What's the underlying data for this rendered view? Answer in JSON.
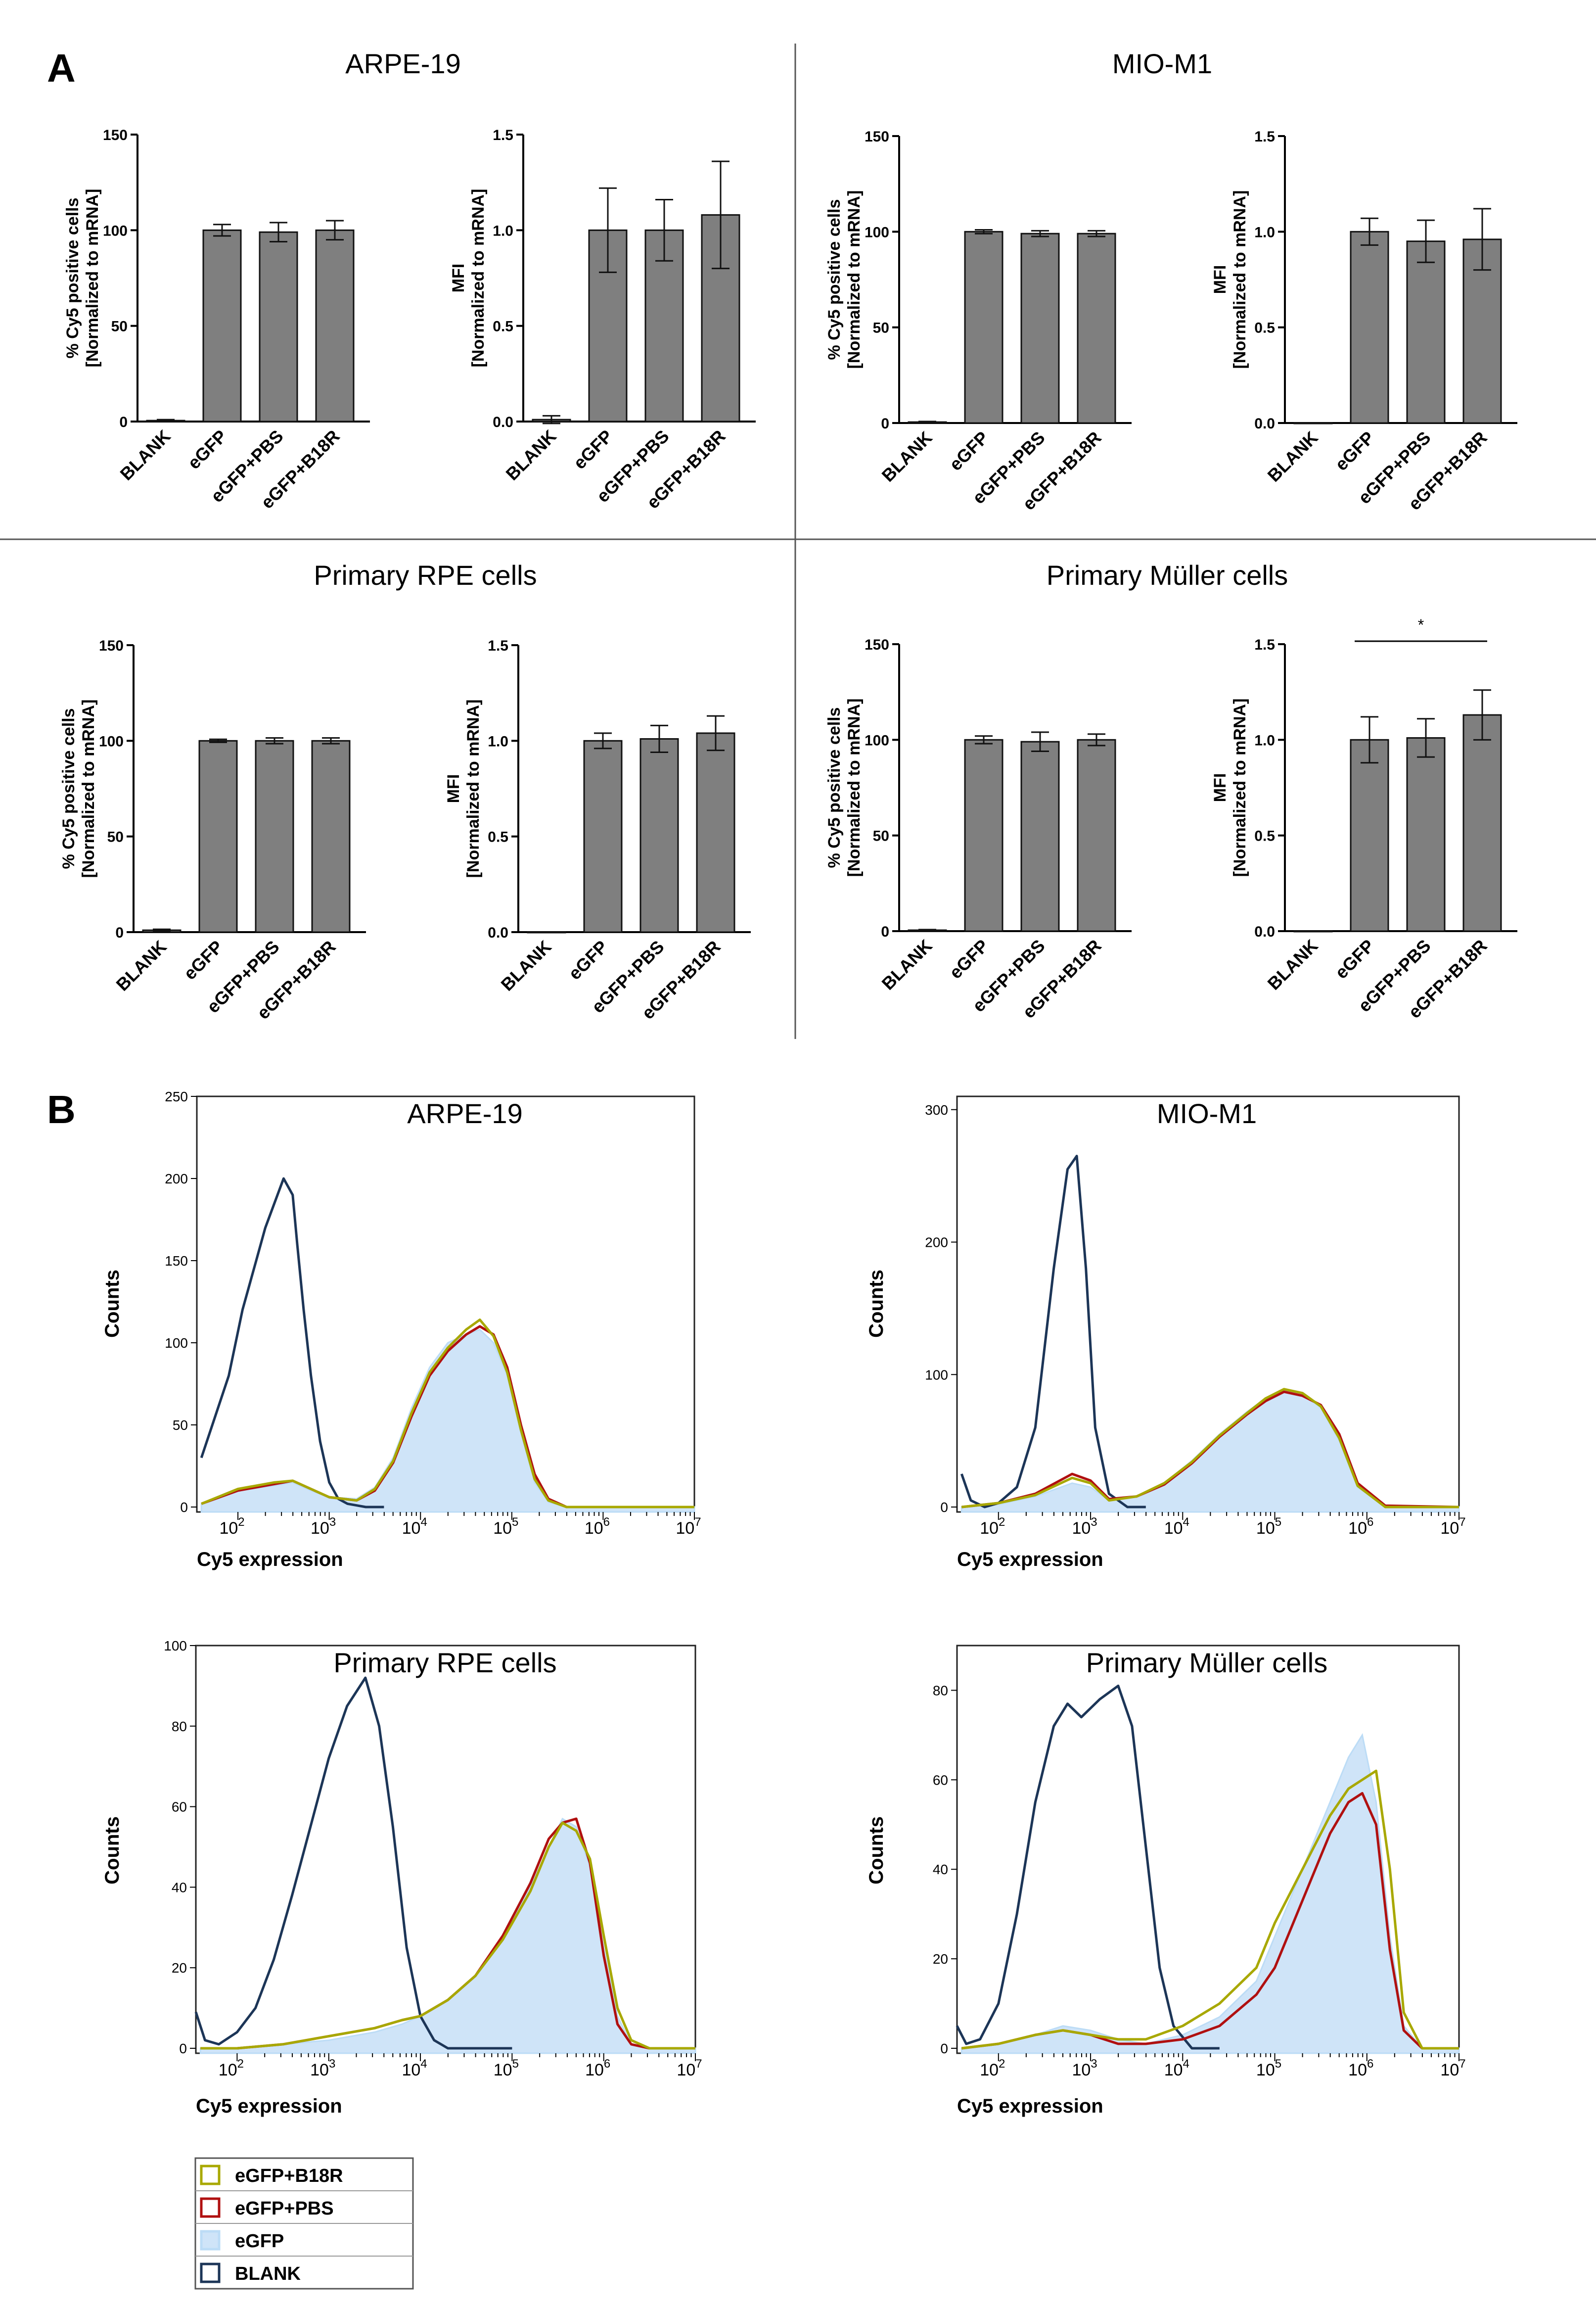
{
  "panel_labels": {
    "a": "A",
    "b": "B"
  },
  "bar_section": {
    "categories": [
      "BLANK",
      "eGFP",
      "eGFP+PBS",
      "eGFP+B18R"
    ],
    "ylabel_pct": [
      "% Cy5 positive cells",
      "[Normalized to mRNA]"
    ],
    "ylabel_mfi": [
      "MFI",
      "[Normalized to mRNA]"
    ],
    "pct_ticks": [
      "0",
      "50",
      "100",
      "150"
    ],
    "mfi_ticks": [
      "0.0",
      "0.5",
      "1.0",
      "1.5"
    ],
    "significance_label": "*"
  },
  "histogram_section": {
    "xlabel": "Cy5 expression",
    "ylabel": "Counts",
    "x_ticks": [
      "2",
      "3",
      "4",
      "5",
      "6",
      "7"
    ],
    "x_base": "10"
  },
  "legend": {
    "items": [
      {
        "label": "eGFP+B18R",
        "color": "#a8a800",
        "fill": "none"
      },
      {
        "label": "eGFP+PBS",
        "color": "#b01010",
        "fill": "none"
      },
      {
        "label": "eGFP",
        "color": "#bcdcf6",
        "fill": "#cfe4f8"
      },
      {
        "label": "BLANK",
        "color": "#1c3557",
        "fill": "none"
      }
    ]
  },
  "chart_data": [
    {
      "type": "bar",
      "title": "ARPE-19",
      "metric": "pct",
      "categories": [
        "BLANK",
        "eGFP",
        "eGFP+PBS",
        "eGFP+B18R"
      ],
      "values": [
        0.5,
        100,
        99,
        100
      ],
      "errors": [
        0.5,
        3,
        5,
        5
      ],
      "ylim": [
        0,
        150
      ],
      "ylabel": "% Cy5 positive cells [Normalized to mRNA]"
    },
    {
      "type": "bar",
      "title": "ARPE-19",
      "metric": "mfi",
      "categories": [
        "BLANK",
        "eGFP",
        "eGFP+PBS",
        "eGFP+B18R"
      ],
      "values": [
        0.01,
        1.0,
        1.0,
        1.08
      ],
      "errors": [
        0.02,
        0.22,
        0.16,
        0.28
      ],
      "ylim": [
        0,
        1.5
      ],
      "ylabel": "MFI [Normalized to mRNA]"
    },
    {
      "type": "bar",
      "title": "MIO-M1",
      "metric": "pct",
      "categories": [
        "BLANK",
        "eGFP",
        "eGFP+PBS",
        "eGFP+B18R"
      ],
      "values": [
        0.5,
        100,
        99,
        99
      ],
      "errors": [
        0.3,
        1,
        1.5,
        1.5
      ],
      "ylim": [
        0,
        150
      ],
      "ylabel": "% Cy5 positive cells [Normalized to mRNA]"
    },
    {
      "type": "bar",
      "title": "MIO-M1",
      "metric": "mfi",
      "categories": [
        "BLANK",
        "eGFP",
        "eGFP+PBS",
        "eGFP+B18R"
      ],
      "values": [
        0.0,
        1.0,
        0.95,
        0.96
      ],
      "errors": [
        0,
        0.07,
        0.11,
        0.16
      ],
      "ylim": [
        0,
        1.5
      ],
      "ylabel": "MFI [Normalized to mRNA]"
    },
    {
      "type": "bar",
      "title": "Primary RPE cells",
      "metric": "pct",
      "categories": [
        "BLANK",
        "eGFP",
        "eGFP+PBS",
        "eGFP+B18R"
      ],
      "values": [
        1,
        100,
        100,
        100
      ],
      "errors": [
        0.5,
        0.8,
        1.5,
        1.5
      ],
      "ylim": [
        0,
        150
      ],
      "ylabel": "% Cy5 positive cells [Normalized to mRNA]"
    },
    {
      "type": "bar",
      "title": "Primary RPE cells",
      "metric": "mfi",
      "categories": [
        "BLANK",
        "eGFP",
        "eGFP+PBS",
        "eGFP+B18R"
      ],
      "values": [
        0.0,
        1.0,
        1.01,
        1.04
      ],
      "errors": [
        0,
        0.04,
        0.07,
        0.09
      ],
      "ylim": [
        0,
        1.5
      ],
      "ylabel": "MFI [Normalized to mRNA]"
    },
    {
      "type": "bar",
      "title": "Primary Müller cells",
      "metric": "pct",
      "categories": [
        "BLANK",
        "eGFP",
        "eGFP+PBS",
        "eGFP+B18R"
      ],
      "values": [
        0.5,
        100,
        99,
        100
      ],
      "errors": [
        0.3,
        2,
        5,
        3
      ],
      "ylim": [
        0,
        150
      ],
      "ylabel": "% Cy5 positive cells [Normalized to mRNA]"
    },
    {
      "type": "bar",
      "title": "Primary Müller cells",
      "metric": "mfi",
      "categories": [
        "BLANK",
        "eGFP",
        "eGFP+PBS",
        "eGFP+B18R"
      ],
      "values": [
        0.0,
        1.0,
        1.01,
        1.13
      ],
      "errors": [
        0,
        0.12,
        0.1,
        0.13
      ],
      "ylim": [
        0,
        1.5
      ],
      "ylabel": "MFI [Normalized to mRNA]",
      "significance": {
        "from": "eGFP",
        "to": "eGFP+B18R",
        "label": "*"
      }
    },
    {
      "type": "line",
      "title": "ARPE-19",
      "xlabel": "Cy5 expression",
      "ylabel": "Counts",
      "x_scale": "log10",
      "xlim": [
        1.55,
        7
      ],
      "ylim": [
        0,
        250
      ],
      "y_ticks": [
        0,
        50,
        100,
        150,
        200,
        250
      ],
      "series": [
        {
          "name": "BLANK",
          "x": [
            1.6,
            1.75,
            1.9,
            2.05,
            2.2,
            2.3,
            2.4,
            2.5,
            2.55,
            2.6,
            2.65,
            2.72,
            2.8,
            2.9,
            3.0,
            3.1,
            3.2,
            3.3,
            3.4,
            3.5,
            3.6
          ],
          "y": [
            30,
            55,
            80,
            120,
            150,
            170,
            185,
            200,
            195,
            190,
            160,
            120,
            80,
            40,
            15,
            5,
            2,
            1,
            0,
            0,
            0
          ]
        },
        {
          "name": "eGFP",
          "x": [
            1.6,
            2.0,
            2.4,
            2.6,
            2.8,
            3.0,
            3.3,
            3.5,
            3.7,
            3.9,
            4.1,
            4.3,
            4.5,
            4.65,
            4.8,
            4.95,
            5.1,
            5.25,
            5.4,
            5.6,
            5.9,
            7.0
          ],
          "y": [
            2,
            10,
            13,
            15,
            10,
            6,
            5,
            12,
            30,
            60,
            85,
            100,
            105,
            108,
            100,
            80,
            45,
            15,
            3,
            0,
            0,
            0
          ]
        },
        {
          "name": "eGFP+PBS",
          "x": [
            1.6,
            2.0,
            2.4,
            2.6,
            2.8,
            3.0,
            3.3,
            3.5,
            3.7,
            3.9,
            4.1,
            4.3,
            4.5,
            4.65,
            4.8,
            4.95,
            5.1,
            5.25,
            5.4,
            5.6,
            5.9,
            7.0
          ],
          "y": [
            2,
            10,
            14,
            16,
            11,
            6,
            4,
            10,
            27,
            55,
            80,
            95,
            105,
            110,
            105,
            85,
            50,
            20,
            5,
            0,
            0,
            0
          ]
        },
        {
          "name": "eGFP+B18R",
          "x": [
            1.6,
            2.0,
            2.4,
            2.6,
            2.8,
            3.0,
            3.3,
            3.5,
            3.7,
            3.9,
            4.1,
            4.3,
            4.5,
            4.65,
            4.8,
            4.95,
            5.1,
            5.25,
            5.4,
            5.6,
            5.9,
            7.0
          ],
          "y": [
            2,
            11,
            15,
            16,
            11,
            6,
            4,
            11,
            28,
            57,
            82,
            97,
            108,
            114,
            104,
            82,
            47,
            17,
            4,
            0,
            0,
            0
          ]
        }
      ]
    },
    {
      "type": "line",
      "title": "MIO-M1",
      "xlabel": "Cy5 expression",
      "ylabel": "Counts",
      "x_scale": "log10",
      "xlim": [
        1.55,
        7
      ],
      "ylim": [
        0,
        310
      ],
      "y_ticks": [
        0,
        100,
        200,
        300
      ],
      "series": [
        {
          "name": "BLANK",
          "x": [
            1.6,
            1.7,
            1.85,
            2.0,
            2.2,
            2.4,
            2.6,
            2.75,
            2.85,
            2.95,
            3.05,
            3.2,
            3.4,
            3.6
          ],
          "y": [
            25,
            5,
            0,
            3,
            15,
            60,
            180,
            255,
            265,
            180,
            60,
            10,
            0,
            0
          ]
        },
        {
          "name": "eGFP",
          "x": [
            1.6,
            2.0,
            2.4,
            2.8,
            3.0,
            3.2,
            3.5,
            3.8,
            4.1,
            4.4,
            4.7,
            4.9,
            5.1,
            5.3,
            5.5,
            5.7,
            5.9,
            6.2,
            7.0
          ],
          "y": [
            0,
            2,
            8,
            18,
            15,
            5,
            8,
            18,
            35,
            55,
            72,
            82,
            88,
            85,
            75,
            50,
            15,
            0,
            0
          ]
        },
        {
          "name": "eGFP+PBS",
          "x": [
            1.6,
            2.0,
            2.4,
            2.8,
            3.0,
            3.2,
            3.5,
            3.8,
            4.1,
            4.4,
            4.7,
            4.9,
            5.1,
            5.3,
            5.5,
            5.7,
            5.9,
            6.2,
            7.0
          ],
          "y": [
            0,
            3,
            10,
            25,
            20,
            6,
            8,
            17,
            33,
            53,
            70,
            80,
            87,
            84,
            77,
            55,
            18,
            1,
            0
          ]
        },
        {
          "name": "eGFP+B18R",
          "x": [
            1.6,
            2.0,
            2.4,
            2.8,
            3.0,
            3.2,
            3.5,
            3.8,
            4.1,
            4.4,
            4.7,
            4.9,
            5.1,
            5.3,
            5.5,
            5.7,
            5.9,
            6.2,
            7.0
          ],
          "y": [
            0,
            3,
            9,
            22,
            18,
            5,
            8,
            18,
            34,
            54,
            71,
            82,
            89,
            86,
            76,
            52,
            16,
            0,
            0
          ]
        }
      ]
    },
    {
      "type": "line",
      "title": "Primary RPE cells",
      "xlabel": "Cy5 expression",
      "ylabel": "Counts",
      "x_scale": "log10",
      "xlim": [
        1.55,
        7
      ],
      "ylim": [
        0,
        100
      ],
      "y_ticks": [
        0,
        20,
        40,
        60,
        80,
        100
      ],
      "series": [
        {
          "name": "BLANK",
          "x": [
            1.55,
            1.65,
            1.8,
            2.0,
            2.2,
            2.4,
            2.6,
            2.8,
            3.0,
            3.2,
            3.4,
            3.55,
            3.7,
            3.85,
            4.0,
            4.15,
            4.3,
            4.6,
            5.0
          ],
          "y": [
            9,
            2,
            1,
            4,
            10,
            22,
            38,
            55,
            72,
            85,
            92,
            80,
            55,
            25,
            8,
            2,
            0,
            0,
            0
          ]
        },
        {
          "name": "eGFP",
          "x": [
            1.6,
            2.0,
            2.5,
            3.0,
            3.5,
            3.8,
            4.0,
            4.3,
            4.6,
            4.9,
            5.2,
            5.4,
            5.55,
            5.7,
            5.85,
            6.0,
            6.15,
            6.3,
            6.5,
            7.0
          ],
          "y": [
            0,
            0,
            1,
            2,
            4,
            6,
            8,
            12,
            18,
            28,
            40,
            50,
            57,
            55,
            45,
            25,
            8,
            1,
            0,
            0
          ]
        },
        {
          "name": "eGFP+PBS",
          "x": [
            1.6,
            2.0,
            2.5,
            3.0,
            3.5,
            3.8,
            4.0,
            4.3,
            4.6,
            4.9,
            5.2,
            5.4,
            5.55,
            5.7,
            5.85,
            6.0,
            6.15,
            6.3,
            6.5,
            7.0
          ],
          "y": [
            0,
            0,
            1,
            3,
            5,
            7,
            8,
            12,
            18,
            28,
            41,
            52,
            56,
            57,
            46,
            23,
            6,
            1,
            0,
            0
          ]
        },
        {
          "name": "eGFP+B18R",
          "x": [
            1.6,
            2.0,
            2.5,
            3.0,
            3.5,
            3.8,
            4.0,
            4.3,
            4.6,
            4.9,
            5.2,
            5.4,
            5.55,
            5.7,
            5.85,
            6.0,
            6.15,
            6.3,
            6.5,
            7.0
          ],
          "y": [
            0,
            0,
            1,
            3,
            5,
            7,
            8,
            12,
            18,
            27,
            39,
            50,
            56,
            54,
            47,
            28,
            10,
            2,
            0,
            0
          ]
        }
      ]
    },
    {
      "type": "line",
      "title": "Primary Müller cells",
      "xlabel": "Cy5 expression",
      "ylabel": "Counts",
      "x_scale": "log10",
      "xlim": [
        1.55,
        7
      ],
      "ylim": [
        0,
        90
      ],
      "y_ticks": [
        0,
        20,
        40,
        60,
        80
      ],
      "series": [
        {
          "name": "BLANK",
          "x": [
            1.55,
            1.65,
            1.8,
            2.0,
            2.2,
            2.4,
            2.6,
            2.75,
            2.9,
            3.1,
            3.3,
            3.45,
            3.6,
            3.75,
            3.9,
            4.1,
            4.4
          ],
          "y": [
            5,
            1,
            2,
            10,
            30,
            55,
            72,
            77,
            74,
            78,
            81,
            72,
            45,
            18,
            5,
            0,
            0
          ]
        },
        {
          "name": "eGFP",
          "x": [
            1.6,
            2.0,
            2.4,
            2.7,
            3.0,
            3.3,
            3.6,
            4.0,
            4.4,
            4.8,
            5.0,
            5.2,
            5.4,
            5.6,
            5.8,
            5.95,
            6.1,
            6.25,
            6.4,
            6.6,
            7.0
          ],
          "y": [
            0,
            1,
            3,
            5,
            4,
            2,
            1,
            3,
            7,
            15,
            25,
            35,
            45,
            55,
            65,
            70,
            55,
            25,
            5,
            0,
            0
          ]
        },
        {
          "name": "eGFP+PBS",
          "x": [
            1.6,
            2.0,
            2.4,
            2.7,
            3.0,
            3.3,
            3.6,
            4.0,
            4.4,
            4.8,
            5.0,
            5.2,
            5.4,
            5.6,
            5.8,
            5.95,
            6.1,
            6.25,
            6.4,
            6.6,
            7.0
          ],
          "y": [
            0,
            1,
            3,
            4,
            3,
            1,
            1,
            2,
            5,
            12,
            18,
            28,
            38,
            48,
            55,
            57,
            50,
            22,
            4,
            0,
            0
          ]
        },
        {
          "name": "eGFP+B18R",
          "x": [
            1.6,
            2.0,
            2.4,
            2.7,
            3.0,
            3.3,
            3.6,
            4.0,
            4.4,
            4.8,
            5.0,
            5.2,
            5.4,
            5.6,
            5.8,
            5.95,
            6.1,
            6.25,
            6.4,
            6.6,
            7.0
          ],
          "y": [
            0,
            1,
            3,
            4,
            3,
            2,
            2,
            5,
            10,
            18,
            28,
            36,
            44,
            52,
            58,
            60,
            62,
            40,
            8,
            0,
            0
          ]
        }
      ]
    }
  ]
}
